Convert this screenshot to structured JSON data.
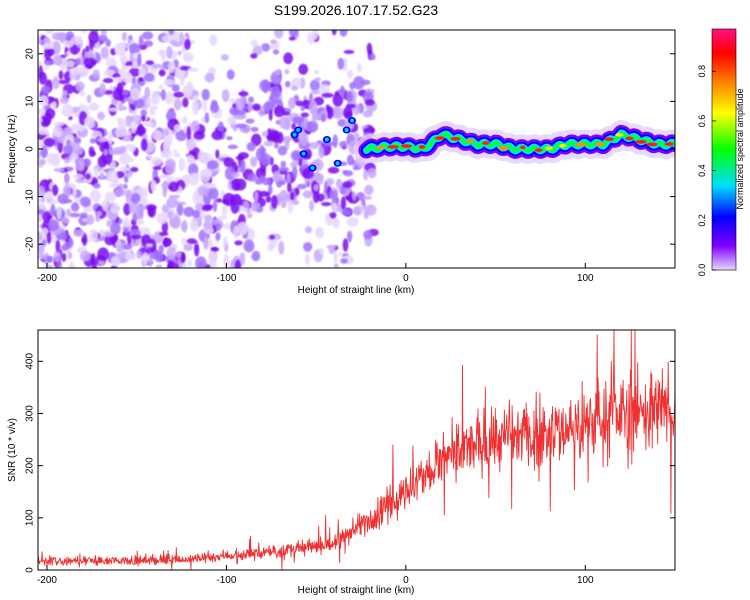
{
  "title": "S199.2026.107.17.52.G23",
  "chart_data": [
    {
      "type": "heatmap",
      "name": "spectrogram",
      "xlabel": "Height of straight line (km)",
      "ylabel": "Frequency (Hz)",
      "xlim": [
        -205,
        150
      ],
      "ylim": [
        -25,
        25
      ],
      "xticks": [
        -200,
        -100,
        0,
        100
      ],
      "yticks": [
        -20,
        -10,
        0,
        10,
        20
      ],
      "colorbar": {
        "label": "Normalized spectral amplitude",
        "range": [
          0,
          0.97
        ],
        "ticks": [
          "0.0",
          "0.2",
          "0.4",
          "0.6",
          "0.8"
        ],
        "tick_values": [
          0,
          0.2,
          0.4,
          0.6,
          0.8
        ],
        "colors": [
          "#e8d8ff",
          "#8000ff",
          "#0000ff",
          "#00e0ff",
          "#00ff00",
          "#ffff00",
          "#ff8000",
          "#ff0000",
          "#ff1080"
        ]
      },
      "ridge": {
        "description": "narrow frequency track above about -22 km",
        "x": [
          -22,
          -10,
          0,
          10,
          20,
          30,
          40,
          50,
          60,
          70,
          80,
          90,
          100,
          110,
          120,
          130,
          140,
          150
        ],
        "frequency": [
          0,
          0.5,
          0.5,
          0,
          3,
          2,
          1,
          1,
          0,
          0,
          0,
          1,
          1,
          1,
          3,
          2,
          1,
          1
        ]
      }
    },
    {
      "type": "line",
      "name": "snr",
      "xlabel": "Height of straight line (km)",
      "ylabel": "SNR (10 * v/v)",
      "xlim": [
        -205,
        150
      ],
      "ylim": [
        0,
        460
      ],
      "xticks": [
        -200,
        -100,
        0,
        100
      ],
      "yticks": [
        0,
        100,
        200,
        300,
        400
      ],
      "color": "#f03030",
      "trend": {
        "x": [
          -205,
          -150,
          -120,
          -100,
          -80,
          -60,
          -40,
          -20,
          0,
          20,
          40,
          60,
          80,
          100,
          120,
          140,
          150
        ],
        "y": [
          18,
          18,
          20,
          28,
          32,
          40,
          50,
          100,
          150,
          210,
          240,
          255,
          265,
          280,
          300,
          310,
          290
        ]
      }
    }
  ]
}
